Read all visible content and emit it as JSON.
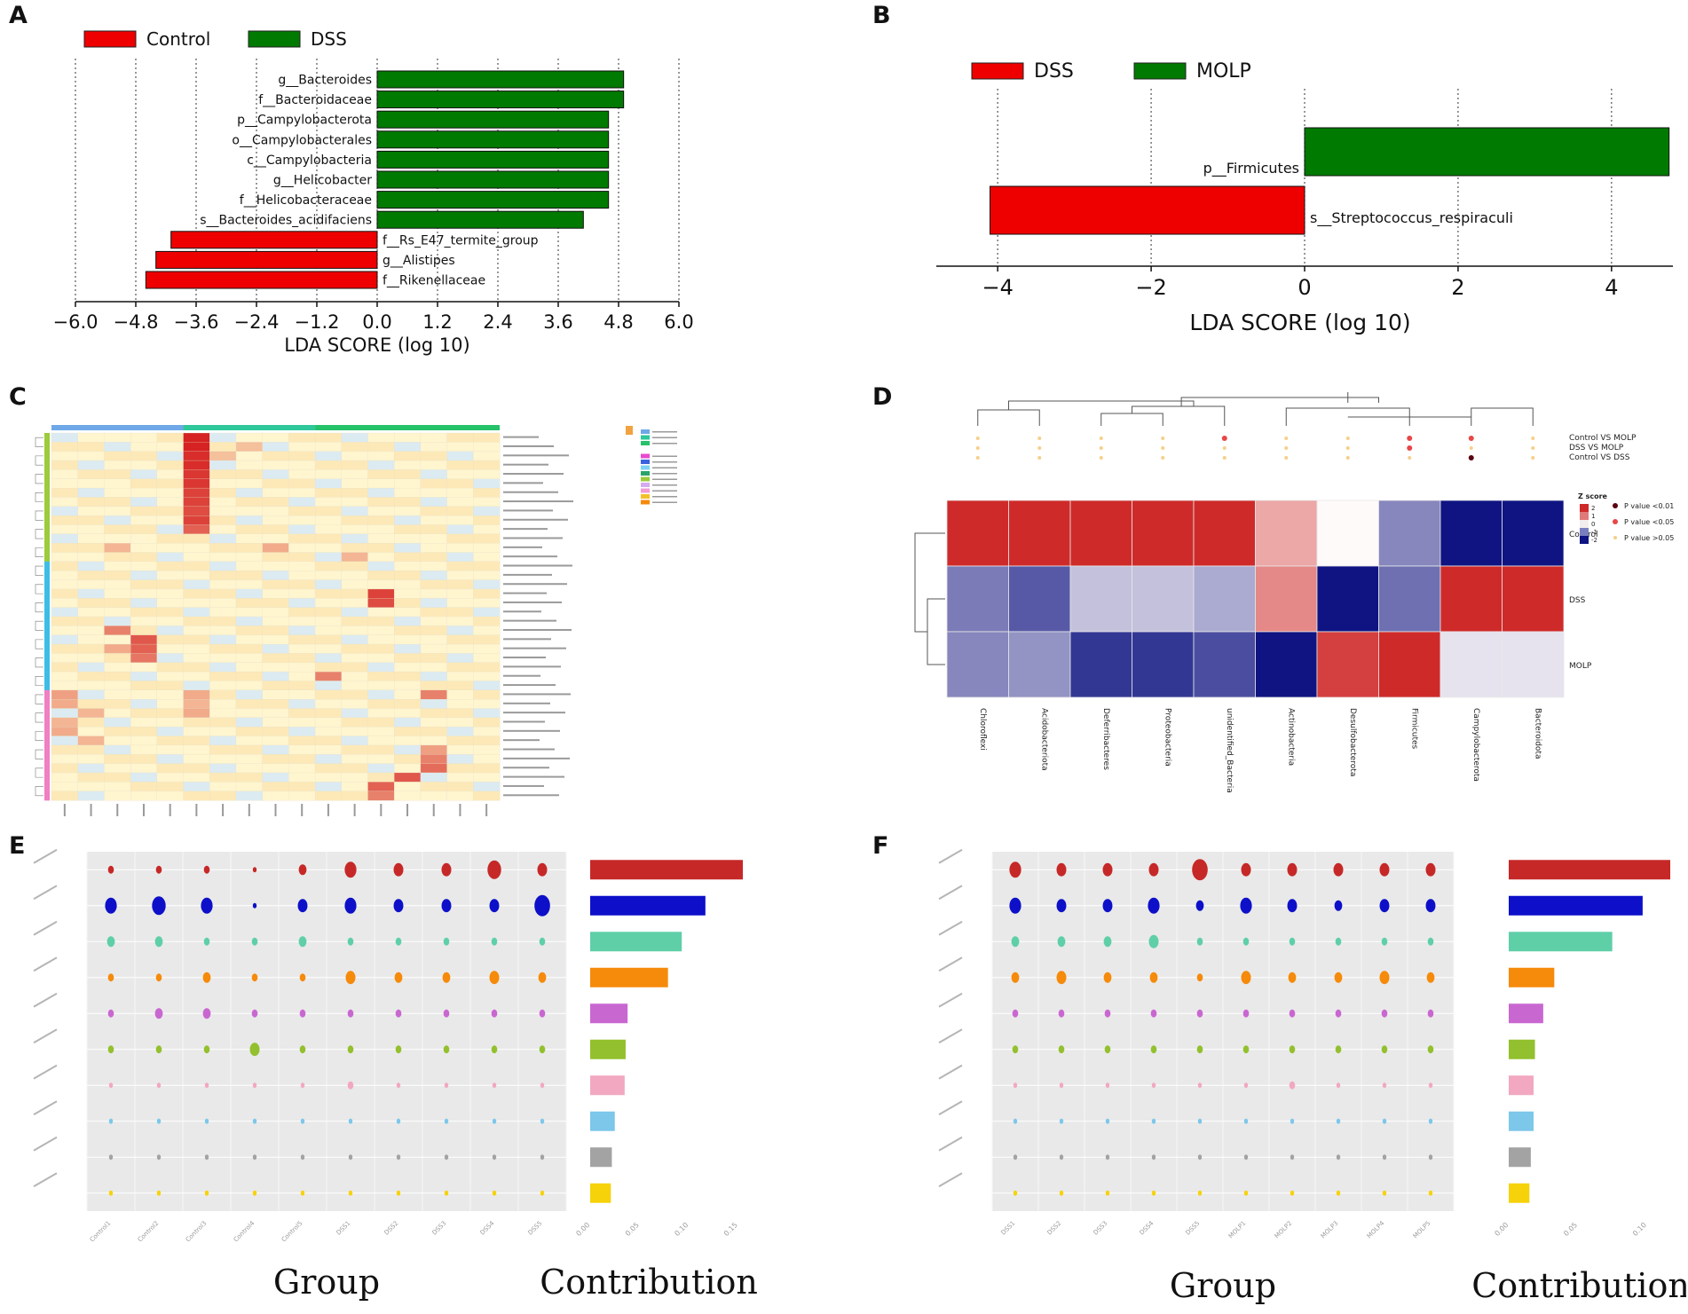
{
  "panels": {
    "A": {
      "label": "A"
    },
    "B": {
      "label": "B"
    },
    "C": {
      "label": "C"
    },
    "D": {
      "label": "D"
    },
    "E": {
      "label": "E"
    },
    "F": {
      "label": "F"
    }
  },
  "colors": {
    "red": "#ee0000",
    "green": "#007a00",
    "heat_high": "#cc1f1f",
    "heat_mid": "#fff7cc",
    "d_red": "#cf2a2a",
    "d_blue": "#1f2a8a",
    "e_series": [
      "#c62828",
      "#0d10c8",
      "#5fcfa8",
      "#f58a0b",
      "#c967d1",
      "#93c02e",
      "#f2a8c0",
      "#7cc7ea",
      "#a3a3a3",
      "#f6d20a"
    ]
  },
  "chart_data": [
    {
      "panel": "A",
      "type": "bar",
      "orientation": "horizontal",
      "legend": [
        "Control",
        "DSS"
      ],
      "categories": [
        "g__Bacteroides",
        "f__Bacteroidaceae",
        "p__Campylobacterota",
        "o__Campylobacterales",
        "c__Campylobacteria",
        "g__Helicobacter",
        "f__Helicobacteraceae",
        "s__Bacteroides_acidifaciens",
        "f__Rs_E47_termite_group",
        "g__Alistipes",
        "f__Rikenellaceae"
      ],
      "values": [
        4.9,
        4.9,
        4.6,
        4.6,
        4.6,
        4.6,
        4.6,
        4.1,
        -4.1,
        -4.4,
        -4.6
      ],
      "groups": [
        "DSS",
        "DSS",
        "DSS",
        "DSS",
        "DSS",
        "DSS",
        "DSS",
        "DSS",
        "Control",
        "Control",
        "Control"
      ],
      "xlabel": "LDA SCORE (log 10)",
      "xticks": [
        "−6.0",
        "−4.8",
        "−3.6",
        "−2.4",
        "−1.2",
        "0.0",
        "1.2",
        "2.4",
        "3.6",
        "4.8",
        "6.0"
      ],
      "xlim": [
        -6.0,
        6.0
      ]
    },
    {
      "panel": "B",
      "type": "bar",
      "orientation": "horizontal",
      "legend": [
        "DSS",
        "MOLP"
      ],
      "categories": [
        "p__Firmicutes",
        "s__Streptococcus_respiraculi"
      ],
      "values": [
        4.75,
        -4.1
      ],
      "groups": [
        "MOLP",
        "DSS"
      ],
      "xlabel": "LDA SCORE (log 10)",
      "xticks": [
        "−4",
        "−2",
        "0",
        "2",
        "4"
      ],
      "xlim": [
        -4.8,
        4.8
      ]
    },
    {
      "panel": "C",
      "type": "heatmap",
      "rows": 40,
      "cols": 17,
      "col_groups": [
        "Control",
        "DSS",
        "MOLP"
      ],
      "col_group_colors": [
        "#6fa8e8",
        "#2ec89a",
        "#26c26a"
      ],
      "hot_cells": [
        [
          0,
          5,
          1.0
        ],
        [
          1,
          5,
          1.0
        ],
        [
          2,
          5,
          0.95
        ],
        [
          3,
          5,
          0.95
        ],
        [
          4,
          5,
          0.9
        ],
        [
          5,
          5,
          0.9
        ],
        [
          6,
          5,
          0.85
        ],
        [
          7,
          5,
          0.85
        ],
        [
          8,
          5,
          0.8
        ],
        [
          9,
          5,
          0.85
        ],
        [
          10,
          5,
          0.7
        ],
        [
          17,
          12,
          0.85
        ],
        [
          18,
          12,
          0.8
        ],
        [
          21,
          2,
          0.55
        ],
        [
          22,
          3,
          0.75
        ],
        [
          23,
          3,
          0.7
        ],
        [
          24,
          3,
          0.6
        ],
        [
          23,
          2,
          0.35
        ],
        [
          26,
          10,
          0.55
        ],
        [
          28,
          0,
          0.4
        ],
        [
          28,
          14,
          0.55
        ],
        [
          29,
          0,
          0.35
        ],
        [
          30,
          1,
          0.3
        ],
        [
          31,
          0,
          0.3
        ],
        [
          32,
          0,
          0.35
        ],
        [
          33,
          1,
          0.3
        ],
        [
          35,
          14,
          0.55
        ],
        [
          36,
          14,
          0.65
        ],
        [
          37,
          13,
          0.75
        ],
        [
          38,
          12,
          0.7
        ],
        [
          39,
          12,
          0.55
        ],
        [
          28,
          5,
          0.35
        ],
        [
          29,
          5,
          0.3
        ],
        [
          30,
          5,
          0.35
        ],
        [
          34,
          14,
          0.4
        ],
        [
          12,
          8,
          0.35
        ],
        [
          2,
          6,
          0.25
        ],
        [
          1,
          7,
          0.25
        ],
        [
          12,
          2,
          0.3
        ],
        [
          13,
          11,
          0.3
        ]
      ]
    },
    {
      "panel": "D",
      "type": "heatmap",
      "columns": [
        "Chloroflexi",
        "Acidobacteriota",
        "Deferribacteres",
        "Proteobacteria",
        "unidentified_Bacteria",
        "Actinobacteria",
        "Desulfobacterota",
        "Firmicutes",
        "Campylobacterota",
        "Bacteroidota"
      ],
      "rows": [
        "Control",
        "DSS",
        "MOLP"
      ],
      "values": [
        [
          1.0,
          1.0,
          1.0,
          1.0,
          1.0,
          0.4,
          0.0,
          -0.5,
          -1.0,
          -1.0
        ],
        [
          -0.55,
          -0.7,
          -0.25,
          -0.25,
          -0.35,
          0.55,
          -1.0,
          -0.6,
          1.0,
          1.0
        ],
        [
          -0.5,
          -0.45,
          -0.85,
          -0.85,
          -0.75,
          -1.0,
          0.9,
          1.0,
          -0.1,
          -0.1
        ]
      ],
      "comparisons": [
        "Control VS MOLP",
        "DSS VS MOLP",
        "Control VS DSS"
      ],
      "legend_title": "Z score",
      "legend_ticks": [
        "2",
        "1",
        "0",
        "-1",
        "-2"
      ],
      "pvalue_legend": [
        "P value <0.01",
        "P value <0.05",
        "P value >0.05"
      ]
    },
    {
      "panel": "E",
      "type": "scatter",
      "xlabel": "Group",
      "contrib_label": "Contribution",
      "groups": [
        "Control1",
        "Control2",
        "Control3",
        "Control4",
        "Control5",
        "DSS1",
        "DSS2",
        "DSS3",
        "DSS4",
        "DSS5"
      ],
      "contribution": [
        0.155,
        0.117,
        0.093,
        0.079,
        0.038,
        0.036,
        0.035,
        0.025,
        0.022,
        0.021
      ],
      "contrib_ticks": [
        "0.00",
        "0.05",
        "0.10",
        "0.15"
      ],
      "sizes": [
        [
          3,
          3,
          3,
          2,
          4,
          6,
          5,
          5,
          7,
          5
        ],
        [
          6,
          7,
          6,
          2,
          5,
          6,
          5,
          5,
          5,
          8
        ],
        [
          4,
          4,
          3,
          3,
          4,
          3,
          3,
          3,
          3,
          3
        ],
        [
          3,
          3,
          4,
          3,
          3,
          5,
          4,
          4,
          5,
          4
        ],
        [
          3,
          4,
          4,
          3,
          3,
          3,
          3,
          3,
          3,
          3
        ],
        [
          3,
          3,
          3,
          5,
          3,
          3,
          3,
          3,
          3,
          3
        ],
        [
          2,
          2,
          2,
          2,
          2,
          3,
          2,
          2,
          2,
          2
        ],
        [
          2,
          2,
          2,
          2,
          2,
          2,
          2,
          2,
          2,
          2
        ],
        [
          2,
          2,
          2,
          2,
          2,
          2,
          2,
          2,
          2,
          2
        ],
        [
          2,
          2,
          2,
          2,
          2,
          2,
          2,
          2,
          2,
          2
        ]
      ]
    },
    {
      "panel": "F",
      "type": "scatter",
      "xlabel": "Group",
      "contrib_label": "Contribution",
      "groups": [
        "DSS1",
        "DSS2",
        "DSS3",
        "DSS4",
        "DSS5",
        "MOLP1",
        "MOLP2",
        "MOLP3",
        "MOLP4",
        "MOLP5"
      ],
      "contribution": [
        0.117,
        0.097,
        0.075,
        0.033,
        0.025,
        0.019,
        0.018,
        0.018,
        0.016,
        0.015
      ],
      "contrib_ticks": [
        "0.00",
        "0.05",
        "0.10"
      ],
      "sizes": [
        [
          6,
          5,
          5,
          5,
          8,
          5,
          5,
          5,
          5,
          5
        ],
        [
          6,
          5,
          5,
          6,
          4,
          6,
          5,
          4,
          5,
          5
        ],
        [
          4,
          4,
          4,
          5,
          3,
          3,
          3,
          3,
          3,
          3
        ],
        [
          4,
          5,
          4,
          4,
          3,
          5,
          4,
          4,
          5,
          4
        ],
        [
          3,
          3,
          3,
          3,
          3,
          3,
          3,
          3,
          3,
          3
        ],
        [
          3,
          3,
          3,
          3,
          3,
          3,
          3,
          3,
          3,
          3
        ],
        [
          2,
          2,
          2,
          2,
          2,
          2,
          3,
          2,
          2,
          2
        ],
        [
          2,
          2,
          2,
          2,
          2,
          2,
          2,
          2,
          2,
          2
        ],
        [
          2,
          2,
          2,
          2,
          2,
          2,
          2,
          2,
          2,
          2
        ],
        [
          2,
          2,
          2,
          2,
          2,
          2,
          2,
          2,
          2,
          2
        ]
      ]
    }
  ]
}
